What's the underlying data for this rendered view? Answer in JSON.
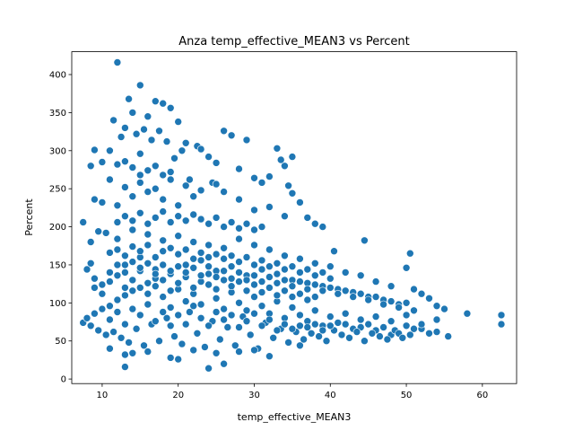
{
  "chart_data": {
    "type": "scatter",
    "title": "Anza temp_effective_MEAN3 vs Percent",
    "xlabel": "temp_effective_MEAN3",
    "ylabel": "Percent",
    "xlim": [
      6.0,
      64.5
    ],
    "ylim": [
      -6,
      430
    ],
    "xticks": [
      10,
      20,
      30,
      40,
      50,
      60
    ],
    "yticks": [
      0,
      50,
      100,
      150,
      200,
      250,
      300,
      350,
      400
    ],
    "grid": false,
    "legend": "none",
    "marker_color": "#1f77b4",
    "marker_edge": "#ffffff",
    "points": [
      [
        12,
        416
      ],
      [
        15,
        386
      ],
      [
        13.5,
        368
      ],
      [
        17,
        365
      ],
      [
        18,
        362
      ],
      [
        19,
        356
      ],
      [
        14,
        350
      ],
      [
        16,
        345
      ],
      [
        11.5,
        340
      ],
      [
        20,
        338
      ],
      [
        13,
        330
      ],
      [
        15.5,
        328
      ],
      [
        17.5,
        326
      ],
      [
        14.5,
        322
      ],
      [
        12.5,
        318
      ],
      [
        16.5,
        314
      ],
      [
        18.5,
        312
      ],
      [
        21,
        310
      ],
      [
        22.5,
        306
      ],
      [
        20.5,
        300
      ],
      [
        26,
        326
      ],
      [
        27,
        320
      ],
      [
        29,
        314
      ],
      [
        24,
        292
      ],
      [
        25,
        284
      ],
      [
        28,
        276
      ],
      [
        23,
        302
      ],
      [
        19.5,
        290
      ],
      [
        15,
        296
      ],
      [
        13,
        286
      ],
      [
        11,
        300
      ],
      [
        9,
        301
      ],
      [
        10,
        285
      ],
      [
        12,
        282
      ],
      [
        8.5,
        280
      ],
      [
        14,
        278
      ],
      [
        16,
        274
      ],
      [
        18,
        268
      ],
      [
        21.5,
        262
      ],
      [
        24.5,
        258
      ],
      [
        30,
        264
      ],
      [
        31,
        258
      ],
      [
        33,
        303
      ],
      [
        34,
        280
      ],
      [
        35,
        292
      ],
      [
        33.5,
        288
      ],
      [
        32,
        266
      ],
      [
        34.5,
        254
      ],
      [
        35,
        244
      ],
      [
        36,
        232
      ],
      [
        37,
        212
      ],
      [
        38,
        204
      ],
      [
        39,
        200
      ],
      [
        40.5,
        168
      ],
      [
        44.5,
        182
      ],
      [
        50.5,
        165
      ],
      [
        11,
        262
      ],
      [
        9,
        236
      ],
      [
        10,
        232
      ],
      [
        12,
        228
      ],
      [
        14,
        240
      ],
      [
        16,
        246
      ],
      [
        18,
        236
      ],
      [
        20,
        228
      ],
      [
        22,
        240
      ],
      [
        26,
        246
      ],
      [
        28,
        236
      ],
      [
        30,
        222
      ],
      [
        32,
        226
      ],
      [
        34,
        214
      ],
      [
        7.5,
        206
      ],
      [
        8.5,
        180
      ],
      [
        9.5,
        194
      ],
      [
        10.5,
        192
      ],
      [
        12,
        184
      ],
      [
        14,
        196
      ],
      [
        16,
        190
      ],
      [
        18,
        182
      ],
      [
        20,
        188
      ],
      [
        22,
        180
      ],
      [
        24,
        176
      ],
      [
        26,
        172
      ],
      [
        28,
        184
      ],
      [
        30,
        176
      ],
      [
        32,
        170
      ],
      [
        34,
        162
      ],
      [
        36,
        158
      ],
      [
        38,
        152
      ],
      [
        40,
        148
      ],
      [
        42,
        140
      ],
      [
        44,
        136
      ],
      [
        46,
        128
      ],
      [
        48,
        122
      ],
      [
        50,
        146
      ],
      [
        51,
        118
      ],
      [
        52,
        112
      ],
      [
        53,
        106
      ],
      [
        54,
        96
      ],
      [
        55,
        92
      ],
      [
        58,
        86
      ],
      [
        62.5,
        84
      ],
      [
        62.5,
        72
      ],
      [
        55.5,
        56
      ],
      [
        54,
        62
      ],
      [
        52,
        66
      ],
      [
        50,
        70
      ],
      [
        48,
        58
      ],
      [
        46,
        64
      ],
      [
        44,
        68
      ],
      [
        42,
        72
      ],
      [
        8,
        144
      ],
      [
        8.5,
        152
      ],
      [
        9,
        132
      ],
      [
        10,
        124
      ],
      [
        11,
        140
      ],
      [
        13,
        150
      ],
      [
        15,
        160
      ],
      [
        17,
        144
      ],
      [
        19,
        138
      ],
      [
        21,
        150
      ],
      [
        23,
        156
      ],
      [
        25,
        142
      ],
      [
        27,
        148
      ],
      [
        29,
        136
      ],
      [
        31,
        144
      ],
      [
        33,
        138
      ],
      [
        35,
        130
      ],
      [
        37,
        126
      ],
      [
        39,
        122
      ],
      [
        41,
        118
      ],
      [
        43,
        114
      ],
      [
        45,
        108
      ],
      [
        47,
        104
      ],
      [
        49,
        98
      ],
      [
        7.5,
        74
      ],
      [
        8,
        80
      ],
      [
        8.5,
        70
      ],
      [
        9,
        86
      ],
      [
        9.5,
        64
      ],
      [
        10,
        92
      ],
      [
        10.5,
        58
      ],
      [
        11,
        96
      ],
      [
        11.5,
        62
      ],
      [
        12,
        104
      ],
      [
        12.5,
        54
      ],
      [
        13,
        110
      ],
      [
        13.5,
        48
      ],
      [
        14,
        116
      ],
      [
        14.5,
        66
      ],
      [
        15,
        120
      ],
      [
        15.5,
        44
      ],
      [
        16,
        126
      ],
      [
        16.5,
        72
      ],
      [
        17,
        132
      ],
      [
        17.5,
        50
      ],
      [
        18,
        108
      ],
      [
        18.5,
        80
      ],
      [
        19,
        94
      ],
      [
        19.5,
        56
      ],
      [
        20,
        118
      ],
      [
        20.5,
        46
      ],
      [
        21,
        102
      ],
      [
        21.5,
        88
      ],
      [
        22,
        112
      ],
      [
        22.5,
        60
      ],
      [
        23,
        98
      ],
      [
        23.5,
        42
      ],
      [
        24,
        124
      ],
      [
        24.5,
        76
      ],
      [
        25,
        106
      ],
      [
        25.5,
        52
      ],
      [
        26,
        92
      ],
      [
        26.5,
        68
      ],
      [
        27,
        114
      ],
      [
        27.5,
        44
      ],
      [
        28,
        100
      ],
      [
        28.5,
        82
      ],
      [
        29,
        90
      ],
      [
        29.5,
        58
      ],
      [
        30,
        108
      ],
      [
        30.5,
        40
      ],
      [
        31,
        96
      ],
      [
        31.5,
        74
      ],
      [
        32,
        86
      ],
      [
        32.5,
        54
      ],
      [
        33,
        102
      ],
      [
        33.5,
        66
      ],
      [
        34,
        80
      ],
      [
        34.5,
        48
      ],
      [
        35,
        94
      ],
      [
        35.5,
        62
      ],
      [
        36,
        84
      ],
      [
        36.5,
        52
      ],
      [
        37,
        76
      ],
      [
        37.5,
        60
      ],
      [
        38,
        90
      ],
      [
        38.5,
        56
      ],
      [
        39,
        70
      ],
      [
        39.5,
        50
      ],
      [
        40,
        82
      ],
      [
        40.5,
        64
      ],
      [
        41,
        74
      ],
      [
        41.5,
        58
      ],
      [
        42,
        86
      ],
      [
        42.5,
        54
      ],
      [
        43,
        66
      ],
      [
        43.5,
        62
      ],
      [
        44,
        78
      ],
      [
        44.5,
        50
      ],
      [
        45,
        72
      ],
      [
        45.5,
        60
      ],
      [
        46,
        82
      ],
      [
        46.5,
        56
      ],
      [
        47,
        68
      ],
      [
        47.5,
        52
      ],
      [
        48,
        76
      ],
      [
        48.5,
        64
      ],
      [
        49,
        60
      ],
      [
        49.5,
        54
      ],
      [
        50,
        84
      ],
      [
        50.5,
        58
      ],
      [
        51,
        66
      ],
      [
        52,
        72
      ],
      [
        53,
        60
      ],
      [
        54,
        78
      ],
      [
        13,
        16
      ],
      [
        13,
        32
      ],
      [
        24,
        14
      ],
      [
        26,
        20
      ],
      [
        19,
        28
      ],
      [
        20,
        26
      ],
      [
        25,
        34
      ],
      [
        32,
        30
      ],
      [
        30,
        38
      ],
      [
        28,
        36
      ],
      [
        16,
        36
      ],
      [
        11,
        40
      ],
      [
        14,
        34
      ],
      [
        22,
        38
      ],
      [
        36,
        44
      ],
      [
        11,
        78
      ],
      [
        12,
        88
      ],
      [
        13,
        72
      ],
      [
        14,
        92
      ],
      [
        15,
        84
      ],
      [
        16,
        98
      ],
      [
        17,
        76
      ],
      [
        18,
        88
      ],
      [
        19,
        70
      ],
      [
        20,
        84
      ],
      [
        21,
        72
      ],
      [
        22,
        96
      ],
      [
        23,
        80
      ],
      [
        24,
        70
      ],
      [
        25,
        88
      ],
      [
        26,
        78
      ],
      [
        27,
        84
      ],
      [
        28,
        68
      ],
      [
        29,
        76
      ],
      [
        30,
        86
      ],
      [
        31,
        70
      ],
      [
        32,
        78
      ],
      [
        33,
        64
      ],
      [
        34,
        72
      ],
      [
        35,
        66
      ],
      [
        36,
        70
      ],
      [
        37,
        68
      ],
      [
        38,
        72
      ],
      [
        39,
        64
      ],
      [
        40,
        70
      ],
      [
        9,
        120
      ],
      [
        10,
        112
      ],
      [
        11,
        128
      ],
      [
        12,
        136
      ],
      [
        13,
        120
      ],
      [
        14,
        130
      ],
      [
        15,
        142
      ],
      [
        16,
        112
      ],
      [
        17,
        122
      ],
      [
        18,
        130
      ],
      [
        19,
        116
      ],
      [
        20,
        126
      ],
      [
        21,
        134
      ],
      [
        22,
        120
      ],
      [
        23,
        128
      ],
      [
        24,
        138
      ],
      [
        25,
        118
      ],
      [
        26,
        130
      ],
      [
        27,
        122
      ],
      [
        28,
        128
      ],
      [
        29,
        116
      ],
      [
        30,
        124
      ],
      [
        31,
        114
      ],
      [
        32,
        120
      ],
      [
        33,
        110
      ],
      [
        34,
        116
      ],
      [
        35,
        108
      ],
      [
        36,
        112
      ],
      [
        37,
        104
      ],
      [
        38,
        108
      ],
      [
        11,
        166
      ],
      [
        12,
        170
      ],
      [
        13,
        162
      ],
      [
        14,
        174
      ],
      [
        15,
        168
      ],
      [
        16,
        176
      ],
      [
        17,
        160
      ],
      [
        18,
        168
      ],
      [
        19,
        172
      ],
      [
        20,
        164
      ],
      [
        21,
        170
      ],
      [
        22,
        158
      ],
      [
        23,
        166
      ],
      [
        24,
        160
      ],
      [
        25,
        164
      ],
      [
        26,
        158
      ],
      [
        27,
        162
      ],
      [
        28,
        154
      ],
      [
        29,
        160
      ],
      [
        30,
        150
      ],
      [
        31,
        156
      ],
      [
        32,
        148
      ],
      [
        33,
        152
      ],
      [
        34,
        144
      ],
      [
        35,
        148
      ],
      [
        36,
        140
      ],
      [
        37,
        144
      ],
      [
        38,
        136
      ],
      [
        39,
        140
      ],
      [
        40,
        132
      ],
      [
        12,
        206
      ],
      [
        13,
        214
      ],
      [
        14,
        208
      ],
      [
        15,
        218
      ],
      [
        16,
        204
      ],
      [
        17,
        212
      ],
      [
        18,
        220
      ],
      [
        19,
        206
      ],
      [
        20,
        214
      ],
      [
        21,
        208
      ],
      [
        22,
        216
      ],
      [
        23,
        210
      ],
      [
        24,
        204
      ],
      [
        25,
        212
      ],
      [
        26,
        200
      ],
      [
        27,
        206
      ],
      [
        28,
        198
      ],
      [
        29,
        204
      ],
      [
        30,
        196
      ],
      [
        31,
        200
      ],
      [
        13,
        252
      ],
      [
        15,
        258
      ],
      [
        17,
        250
      ],
      [
        19,
        262
      ],
      [
        21,
        254
      ],
      [
        23,
        248
      ],
      [
        25,
        256
      ],
      [
        15,
        268
      ],
      [
        17,
        280
      ],
      [
        19,
        272
      ],
      [
        12,
        150
      ],
      [
        13,
        140
      ],
      [
        14,
        154
      ],
      [
        15,
        146
      ],
      [
        16,
        152
      ],
      [
        17,
        138
      ],
      [
        18,
        150
      ],
      [
        19,
        142
      ],
      [
        20,
        148
      ],
      [
        21,
        140
      ],
      [
        22,
        146
      ],
      [
        23,
        136
      ],
      [
        24,
        148
      ],
      [
        25,
        134
      ],
      [
        26,
        142
      ],
      [
        27,
        132
      ],
      [
        28,
        140
      ],
      [
        29,
        130
      ],
      [
        30,
        136
      ],
      [
        31,
        128
      ],
      [
        32,
        134
      ],
      [
        33,
        126
      ],
      [
        34,
        130
      ],
      [
        35,
        122
      ],
      [
        36,
        128
      ],
      [
        37,
        118
      ],
      [
        38,
        124
      ],
      [
        39,
        116
      ],
      [
        40,
        120
      ],
      [
        41,
        112
      ],
      [
        42,
        116
      ],
      [
        43,
        108
      ],
      [
        44,
        112
      ],
      [
        45,
        104
      ],
      [
        46,
        108
      ],
      [
        47,
        98
      ],
      [
        48,
        102
      ],
      [
        49,
        94
      ],
      [
        50,
        100
      ],
      [
        51,
        90
      ]
    ]
  }
}
